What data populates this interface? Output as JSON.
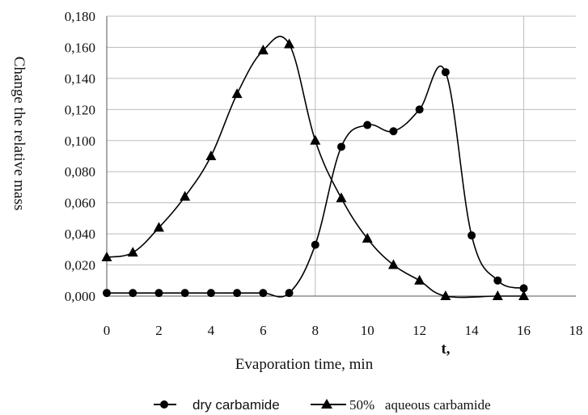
{
  "chart_data": {
    "type": "line",
    "xlabel": "Evaporation time, min",
    "x_axis_end_label": "t,",
    "ylabel": "Change the relative mass",
    "xlim": [
      0,
      18
    ],
    "ylim": [
      0,
      0.18
    ],
    "x_ticks": [
      "0",
      "2",
      "4",
      "6",
      "8",
      "10",
      "12",
      "14",
      "16",
      "18"
    ],
    "y_ticks": [
      "0,000",
      "0,020",
      "0,040",
      "0,060",
      "0,080",
      "0,100",
      "0,120",
      "0,140",
      "0,160",
      "0,180"
    ],
    "grid": "vertical and horizontal",
    "legend_position": "bottom",
    "series": [
      {
        "name": "dry carbamide",
        "marker": "circle",
        "x": [
          0,
          1,
          2,
          3,
          4,
          5,
          6,
          7,
          8,
          9,
          10,
          11,
          12,
          13,
          14,
          15,
          16
        ],
        "values": [
          0.002,
          0.002,
          0.002,
          0.002,
          0.002,
          0.002,
          0.002,
          0.002,
          0.033,
          0.096,
          0.11,
          0.106,
          0.12,
          0.144,
          0.039,
          0.01,
          0.005
        ]
      },
      {
        "name": "50%   aqueous carbamide",
        "marker": "triangle",
        "x": [
          0,
          1,
          2,
          3,
          4,
          5,
          6,
          7,
          8,
          9,
          10,
          11,
          12,
          13,
          15,
          16
        ],
        "values": [
          0.025,
          0.028,
          0.044,
          0.064,
          0.09,
          0.13,
          0.158,
          0.162,
          0.1,
          0.063,
          0.037,
          0.02,
          0.01,
          0.0,
          0.0,
          0.0
        ]
      }
    ]
  }
}
